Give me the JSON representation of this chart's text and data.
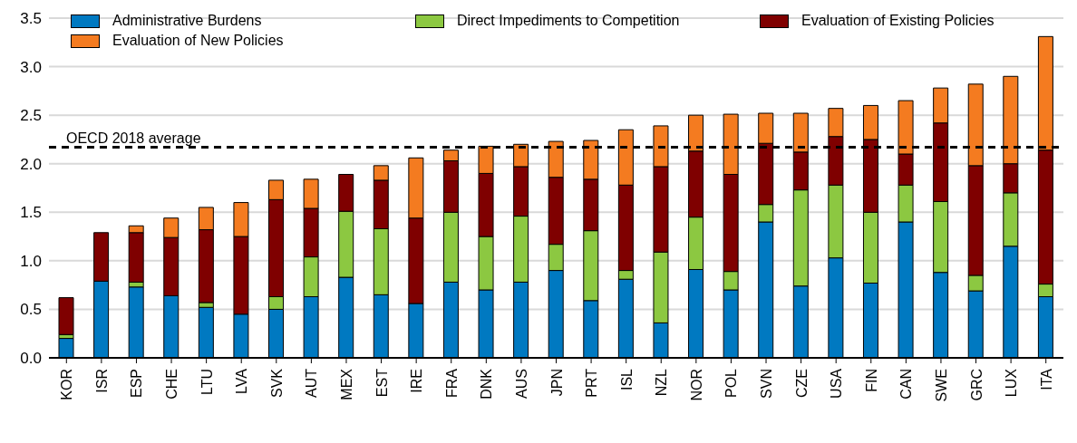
{
  "chart_data": {
    "type": "bar",
    "stacked": true,
    "categories": [
      "KOR",
      "ISR",
      "ESP",
      "CHE",
      "LTU",
      "LVA",
      "SVK",
      "AUT",
      "MEX",
      "EST",
      "IRE",
      "FRA",
      "DNK",
      "AUS",
      "JPN",
      "PRT",
      "ISL",
      "NZL",
      "NOR",
      "POL",
      "SVN",
      "CZE",
      "USA",
      "FIN",
      "CAN",
      "SWE",
      "GRC",
      "LUX",
      "ITA"
    ],
    "series": [
      {
        "name": "Administrative Burdens",
        "color": "#0079c1",
        "values": [
          0.2,
          0.79,
          0.73,
          0.64,
          0.52,
          0.45,
          0.5,
          0.63,
          0.83,
          0.65,
          0.56,
          0.78,
          0.7,
          0.78,
          0.9,
          0.59,
          0.81,
          0.36,
          0.91,
          0.7,
          1.4,
          0.74,
          1.03,
          0.77,
          1.4,
          0.88,
          0.69,
          1.15,
          0.63
        ]
      },
      {
        "name": "Direct Impediments to Competition",
        "color": "#8cc841",
        "values": [
          0.04,
          0,
          0.05,
          0,
          0.05,
          0,
          0.13,
          0.41,
          0.68,
          0.68,
          0,
          0.72,
          0.55,
          0.68,
          0.27,
          0.72,
          0.09,
          0.73,
          0.54,
          0.19,
          0.18,
          0.99,
          0.75,
          0.73,
          0.38,
          0.73,
          0.16,
          0.55,
          0.13
        ]
      },
      {
        "name": "Evaluation of Existing Policies",
        "color": "#7f0000",
        "values": [
          0.38,
          0.5,
          0.51,
          0.6,
          0.75,
          0.8,
          1.0,
          0.5,
          0.38,
          0.5,
          0.88,
          0.53,
          0.65,
          0.51,
          0.69,
          0.53,
          0.88,
          0.88,
          0.68,
          1.0,
          0.63,
          0.39,
          0.5,
          0.75,
          0.32,
          0.81,
          1.13,
          0.3,
          1.38
        ]
      },
      {
        "name": "Evaluation of New Policies",
        "color": "#f47b20",
        "values": [
          0,
          0,
          0.07,
          0.2,
          0.23,
          0.35,
          0.2,
          0.3,
          0,
          0.15,
          0.62,
          0.11,
          0.28,
          0.23,
          0.37,
          0.4,
          0.57,
          0.42,
          0.37,
          0.62,
          0.31,
          0.4,
          0.29,
          0.35,
          0.55,
          0.36,
          0.84,
          0.9,
          1.17
        ]
      }
    ],
    "ylim": [
      0,
      3.5
    ],
    "yticks": [
      {
        "value": 0,
        "label": "0.0"
      },
      {
        "value": 0.5,
        "label": "0.5"
      },
      {
        "value": 1,
        "label": "1.0"
      },
      {
        "value": 1.5,
        "label": "1.5"
      },
      {
        "value": 2,
        "label": "2.0"
      },
      {
        "value": 2.5,
        "label": "2.5"
      },
      {
        "value": 3,
        "label": "3.0"
      },
      {
        "value": 3.5,
        "label": "3.5"
      }
    ],
    "grid": "y",
    "legend": "top left",
    "ref_lines": [
      {
        "axis": "y",
        "value": 2.17,
        "label": "OECD 2018 average",
        "color": "#000000",
        "line_style": "dashed"
      }
    ]
  }
}
